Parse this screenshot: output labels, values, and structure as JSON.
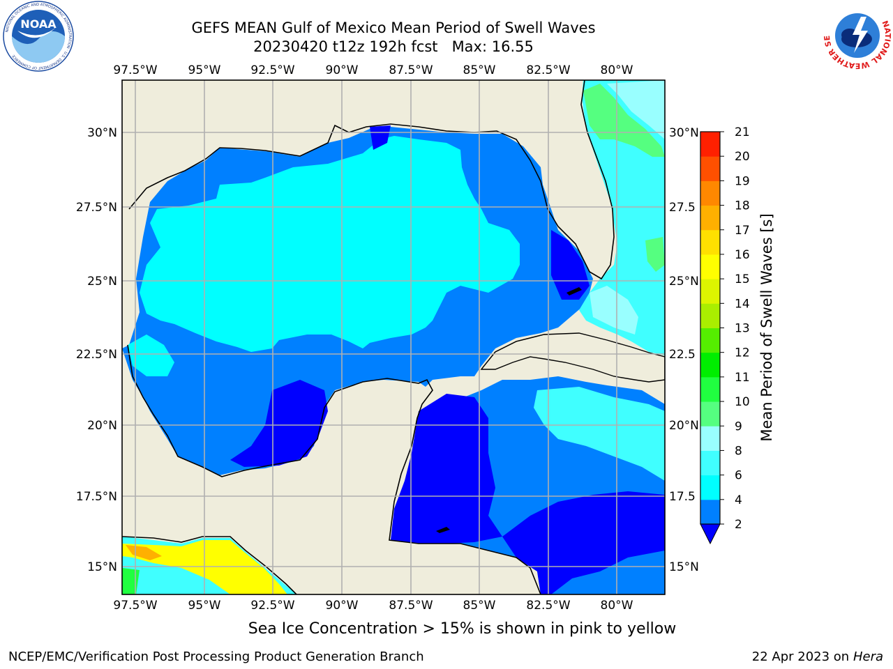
{
  "title": {
    "line1": "GEFS MEAN Gulf of Mexico Mean Period of Swell Waves",
    "line2": "20230420 t12z 192h fcst   Max: 16.55"
  },
  "note": "Sea Ice Concentration > 15% is shown in pink to yellow",
  "footer": {
    "left": "NCEP/EMC/Verification Post Processing Product Generation Branch",
    "date": "22 Apr 2023 on",
    "machine": "Hera"
  },
  "logos": {
    "noaa": {
      "text": "NOAA",
      "ring": "NATIONAL OCEANIC AND ATMOSPHERIC ADMINISTRATION · U.S. DEPARTMENT OF COMMERCE"
    },
    "nws": {
      "ring": "NATIONAL WEATHER SERVICE"
    }
  },
  "map": {
    "lon_ticks": [
      "97.5°W",
      "95°W",
      "92.5°W",
      "90°W",
      "87.5°W",
      "85°W",
      "82.5°W",
      "80°W"
    ],
    "lat_ticks_left": [
      "30°N",
      "27.5°N",
      "25°N",
      "22.5°N",
      "20°N",
      "17.5°N",
      "15°N"
    ],
    "lat_ticks_right": [
      "30°N",
      "27.5",
      "25°N",
      "22.5",
      "20°N",
      "17.5",
      "15°N"
    ],
    "colors": {
      "land": "#efeddc",
      "ocean_base": "#0080ff",
      "grid": "#b0b0b0"
    }
  },
  "colorbar": {
    "label": "Mean Period of Swell Waves [s]",
    "ticks": [
      "2",
      "4",
      "6",
      "8",
      "9",
      "10",
      "11",
      "12",
      "13",
      "14",
      "15",
      "16",
      "17",
      "18",
      "19",
      "20",
      "21"
    ],
    "colors": [
      "#0080ff",
      "#00ffff",
      "#40ffff",
      "#99ffff",
      "#55ff80",
      "#20ff40",
      "#00ee00",
      "#55ee00",
      "#aaee00",
      "#ddf500",
      "#ffff00",
      "#ffe000",
      "#ffb000",
      "#ff8800",
      "#ff5000",
      "#ff2000"
    ],
    "extend_color": "#0000ff"
  }
}
